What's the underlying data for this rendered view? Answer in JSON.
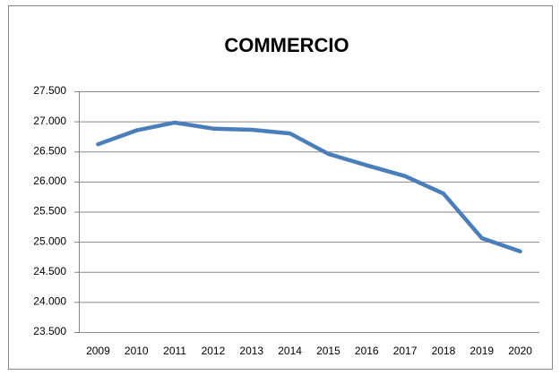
{
  "chart_data": {
    "type": "line",
    "title": "COMMERCIO",
    "categories": [
      "2009",
      "2010",
      "2011",
      "2012",
      "2013",
      "2014",
      "2015",
      "2016",
      "2017",
      "2018",
      "2019",
      "2020"
    ],
    "series": [
      {
        "name": "COMMERCIO",
        "color": "#4a7ebb",
        "values": [
          26620,
          26850,
          26980,
          26880,
          26860,
          26800,
          26460,
          26270,
          26090,
          25800,
          25060,
          24840
        ]
      }
    ],
    "ylim": [
      23500,
      27500
    ],
    "yticks": [
      {
        "value": 23500,
        "label": "23.500"
      },
      {
        "value": 24000,
        "label": "24.000"
      },
      {
        "value": 24500,
        "label": "24.500"
      },
      {
        "value": 25000,
        "label": "25.000"
      },
      {
        "value": 25500,
        "label": "25.500"
      },
      {
        "value": 26000,
        "label": "26.000"
      },
      {
        "value": 26500,
        "label": "26.500"
      },
      {
        "value": 27000,
        "label": "27.000"
      },
      {
        "value": 27500,
        "label": "27.500"
      }
    ],
    "grid": true
  }
}
